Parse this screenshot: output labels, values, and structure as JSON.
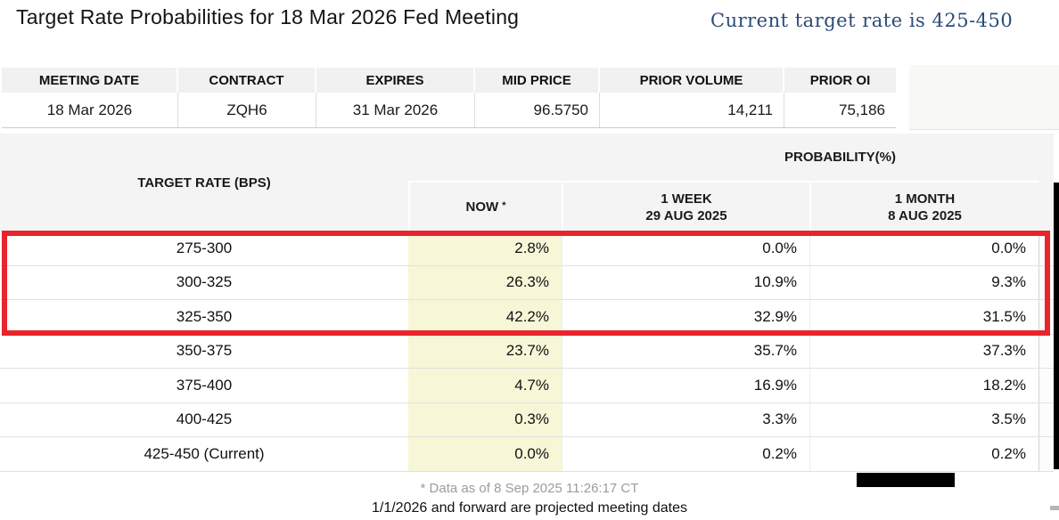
{
  "header": {
    "title": "Target Rate Probabilities for 18 Mar 2026 Fed Meeting",
    "current_rate_note": "Current target rate is 425-450"
  },
  "summary_table": {
    "columns": [
      "MEETING DATE",
      "CONTRACT",
      "EXPIRES",
      "MID PRICE",
      "PRIOR VOLUME",
      "PRIOR OI"
    ],
    "row": {
      "meeting_date": "18 Mar 2026",
      "contract": "ZQH6",
      "expires": "31 Mar 2026",
      "mid_price": "96.5750",
      "prior_volume": "14,211",
      "prior_oi": "75,186"
    }
  },
  "probability_table": {
    "target_rate_header": "TARGET RATE (BPS)",
    "probability_header": "PROBABILITY(%)",
    "col_now": "NOW",
    "now_asterisk": "*",
    "col_week_label": "1 WEEK",
    "col_week_date": "29 AUG 2025",
    "col_month_label": "1 MONTH",
    "col_month_date": "8 AUG 2025",
    "rows": [
      {
        "rate": "275-300",
        "now": "2.8%",
        "week": "0.0%",
        "month": "0.0%",
        "highlighted": true
      },
      {
        "rate": "300-325",
        "now": "26.3%",
        "week": "10.9%",
        "month": "9.3%",
        "highlighted": true
      },
      {
        "rate": "325-350",
        "now": "42.2%",
        "week": "32.9%",
        "month": "31.5%",
        "highlighted": true
      },
      {
        "rate": "350-375",
        "now": "23.7%",
        "week": "35.7%",
        "month": "37.3%",
        "highlighted": false
      },
      {
        "rate": "375-400",
        "now": "4.7%",
        "week": "16.9%",
        "month": "18.2%",
        "highlighted": false
      },
      {
        "rate": "400-425",
        "now": "0.3%",
        "week": "3.3%",
        "month": "3.5%",
        "highlighted": false
      },
      {
        "rate": "425-450 (Current)",
        "now": "0.0%",
        "week": "0.2%",
        "month": "0.2%",
        "highlighted": false
      }
    ]
  },
  "footer": {
    "data_asof": "* Data as of 8 Sep 2025 11:26:17 CT",
    "projection_note": "1/1/2026 and forward are projected meeting dates"
  },
  "colors": {
    "highlight_border_red": "#e8242c",
    "now_column_yellow": "#f7f7d8",
    "note_blue": "#2b4b77",
    "table_header_gray": "#f1f1f1"
  }
}
